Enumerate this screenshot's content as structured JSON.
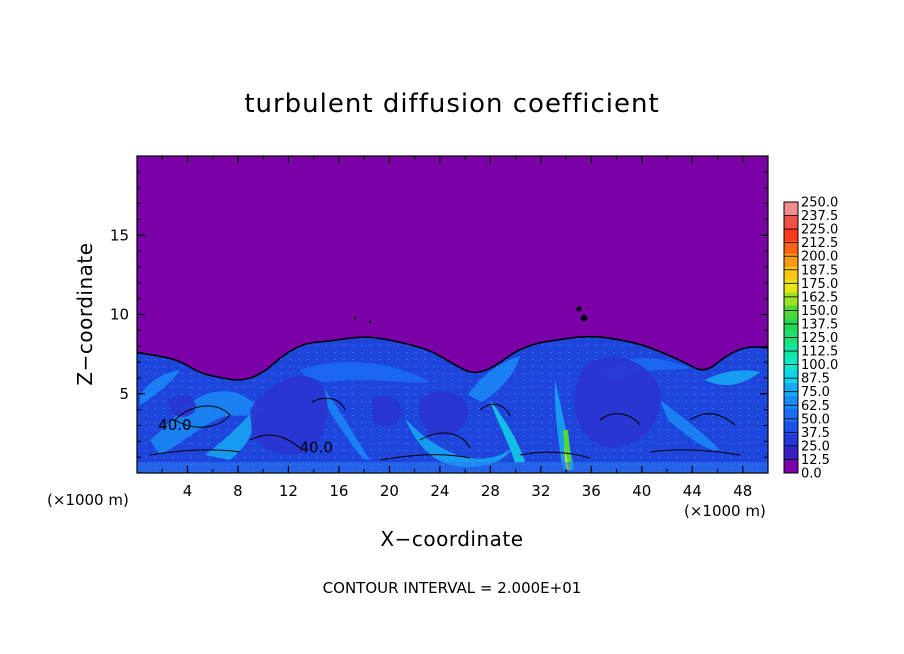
{
  "chart_data": {
    "type": "heatmap",
    "title": "turbulent diffusion coefficient",
    "xlabel": "X−coordinate",
    "ylabel": "Z−coordinate",
    "x_unit": "(×1000 m)",
    "z_unit": "(×1000 m)",
    "xlim": [
      0,
      50
    ],
    "ylim": [
      0,
      20
    ],
    "x_ticks": [
      4,
      8,
      12,
      16,
      20,
      24,
      28,
      32,
      36,
      40,
      44,
      48
    ],
    "y_ticks": [
      5,
      10,
      15
    ],
    "contour_interval_text": "CONTOUR INTERVAL = 2.000E+01",
    "contour_labels": [
      {
        "text": "40.0",
        "x": 3.0,
        "z": 2.7
      },
      {
        "text": "40.0",
        "x": 14.2,
        "z": 1.3
      }
    ],
    "colorbar": {
      "min": 0,
      "max": 250,
      "step": 12.5,
      "tick_labels": [
        "0.0",
        "12.5",
        "25.0",
        "37.5",
        "50.0",
        "62.5",
        "75.0",
        "87.5",
        "100.0",
        "112.5",
        "125.0",
        "137.5",
        "150.0",
        "162.5",
        "175.0",
        "187.5",
        "200.0",
        "212.5",
        "225.0",
        "237.5",
        "250.0"
      ],
      "colors": [
        "#7b00a8",
        "#3c1fc4",
        "#2438d8",
        "#1e50ec",
        "#1a6cf4",
        "#1a8af6",
        "#16aaf4",
        "#10d4e8",
        "#10e6c8",
        "#14e6a0",
        "#1ede78",
        "#28d850",
        "#50d836",
        "#9ae224",
        "#e6e614",
        "#fac814",
        "#fa9a14",
        "#fa6414",
        "#fa3a1c",
        "#f05046",
        "#f08c8c"
      ]
    },
    "boundary_layer_top_z": [
      7.6,
      7.4,
      7.1,
      6.3,
      6.0,
      5.8,
      6.3,
      7.5,
      8.2,
      8.3,
      8.5,
      8.6,
      8.4,
      8.1,
      7.7,
      6.9,
      6.2,
      6.7,
      7.7,
      8.2,
      8.4,
      8.6,
      8.6,
      8.4,
      8.1,
      7.6,
      7.0,
      6.3,
      7.4,
      8.0,
      7.9
    ]
  }
}
